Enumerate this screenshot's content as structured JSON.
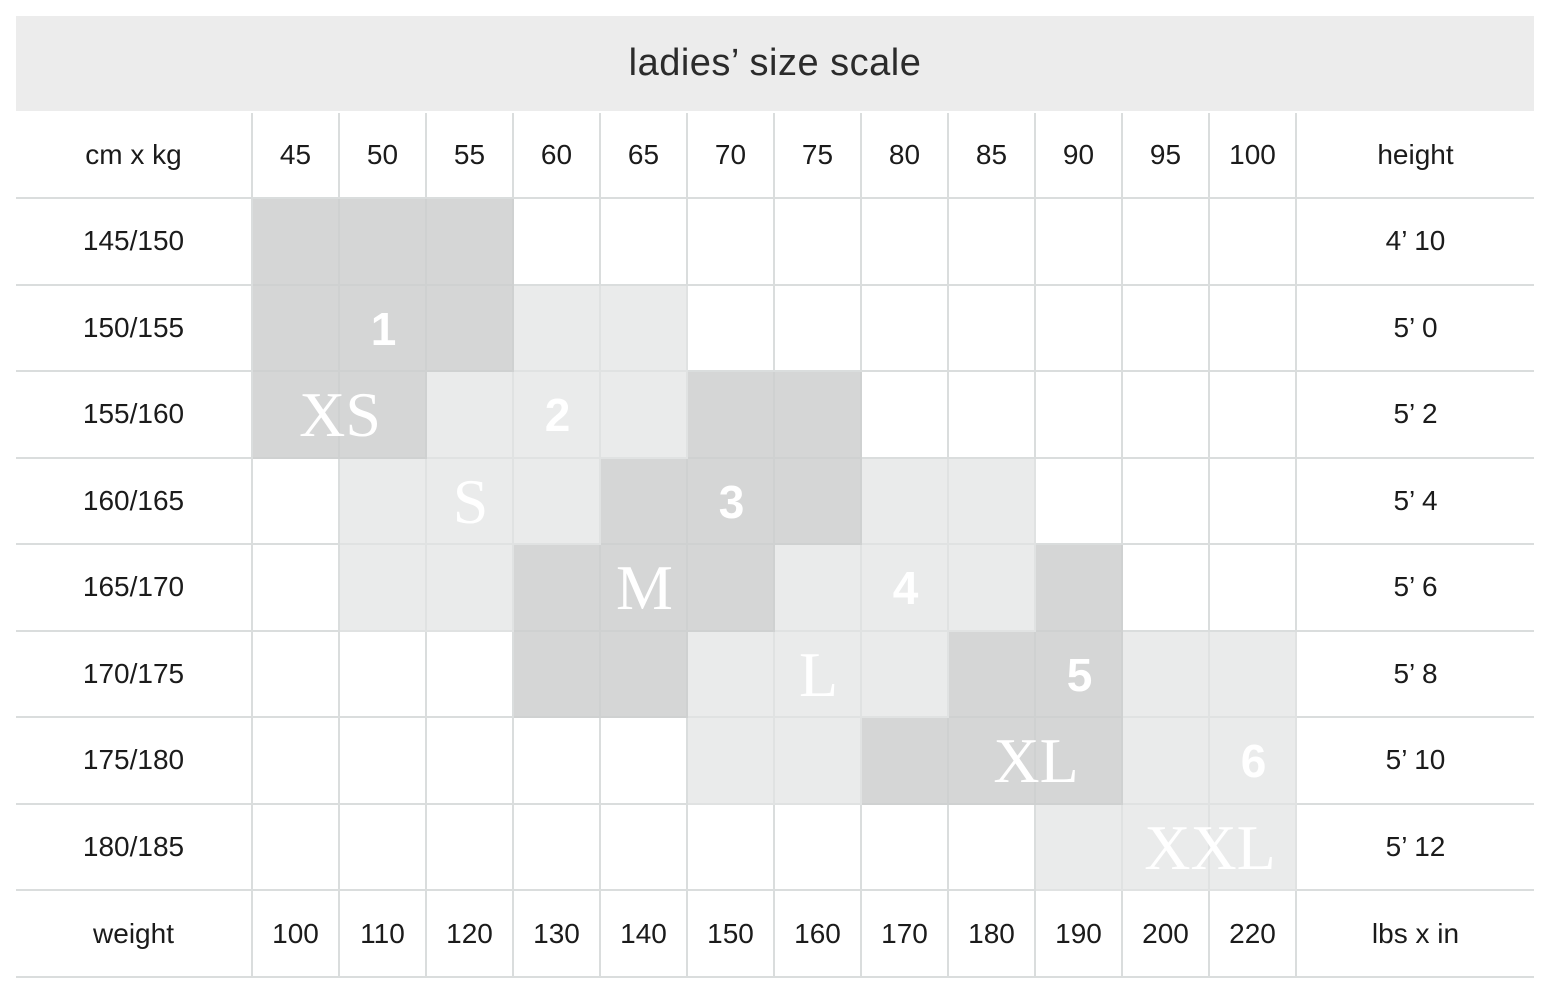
{
  "chart_data": {
    "type": "table",
    "title": "ladies’ size scale",
    "corners": {
      "top_left": "cm x kg",
      "top_right": "height",
      "bottom_left": "weight",
      "bottom_right": "lbs x in"
    },
    "weight_kg_columns": [
      "45",
      "50",
      "55",
      "60",
      "65",
      "70",
      "75",
      "80",
      "85",
      "90",
      "95",
      "100"
    ],
    "weight_lbs_row": [
      "100",
      "110",
      "120",
      "130",
      "140",
      "150",
      "160",
      "170",
      "180",
      "190",
      "200",
      "220"
    ],
    "height_rows": [
      {
        "cm": "145/150",
        "imperial": "4’ 10"
      },
      {
        "cm": "150/155",
        "imperial": "5’ 0"
      },
      {
        "cm": "155/160",
        "imperial": "5’ 2"
      },
      {
        "cm": "160/165",
        "imperial": "5’ 4"
      },
      {
        "cm": "165/170",
        "imperial": "5’ 6"
      },
      {
        "cm": "170/175",
        "imperial": "5’ 8"
      },
      {
        "cm": "175/180",
        "imperial": "5’ 10"
      },
      {
        "cm": "180/185",
        "imperial": "5’ 12"
      }
    ],
    "sizes": [
      {
        "name": "XS",
        "number": "1",
        "shade": "dark",
        "cells": [
          [
            0,
            0
          ],
          [
            0,
            1
          ],
          [
            0,
            2
          ],
          [
            1,
            0
          ],
          [
            1,
            1
          ],
          [
            1,
            2
          ],
          [
            2,
            0
          ],
          [
            2,
            1
          ]
        ],
        "name_pos": {
          "row": 2,
          "col": 0,
          "span": 2
        },
        "number_pos": {
          "row": 1,
          "col": 1
        }
      },
      {
        "name": "S",
        "number": "2",
        "shade": "light",
        "cells": [
          [
            1,
            3
          ],
          [
            1,
            4
          ],
          [
            2,
            2
          ],
          [
            2,
            3
          ],
          [
            2,
            4
          ],
          [
            3,
            1
          ],
          [
            3,
            2
          ],
          [
            3,
            3
          ],
          [
            4,
            1
          ],
          [
            4,
            2
          ]
        ],
        "name_pos": {
          "row": 3,
          "col": 2,
          "span": 1
        },
        "number_pos": {
          "row": 2,
          "col": 3
        }
      },
      {
        "name": "M",
        "number": "3",
        "shade": "dark",
        "cells": [
          [
            2,
            5
          ],
          [
            2,
            6
          ],
          [
            3,
            4
          ],
          [
            3,
            5
          ],
          [
            3,
            6
          ],
          [
            4,
            3
          ],
          [
            4,
            4
          ],
          [
            4,
            5
          ],
          [
            5,
            3
          ],
          [
            5,
            4
          ]
        ],
        "name_pos": {
          "row": 4,
          "col": 3,
          "span": 3
        },
        "number_pos": {
          "row": 3,
          "col": 5
        }
      },
      {
        "name": "L",
        "number": "4",
        "shade": "light",
        "cells": [
          [
            3,
            7
          ],
          [
            3,
            8
          ],
          [
            4,
            6
          ],
          [
            4,
            7
          ],
          [
            4,
            8
          ],
          [
            5,
            5
          ],
          [
            5,
            6
          ],
          [
            5,
            7
          ],
          [
            6,
            5
          ],
          [
            6,
            6
          ]
        ],
        "name_pos": {
          "row": 5,
          "col": 6,
          "span": 1
        },
        "number_pos": {
          "row": 4,
          "col": 7
        }
      },
      {
        "name": "XL",
        "number": "5",
        "shade": "dark",
        "cells": [
          [
            4,
            9
          ],
          [
            5,
            8
          ],
          [
            5,
            9
          ],
          [
            6,
            7
          ],
          [
            6,
            8
          ],
          [
            6,
            9
          ]
        ],
        "name_pos": {
          "row": 6,
          "col": 8,
          "span": 2
        },
        "number_pos": {
          "row": 5,
          "col": 9
        }
      },
      {
        "name": "XXL",
        "number": "6",
        "shade": "light",
        "cells": [
          [
            5,
            10
          ],
          [
            5,
            11
          ],
          [
            6,
            10
          ],
          [
            6,
            11
          ],
          [
            7,
            9
          ],
          [
            7,
            10
          ],
          [
            7,
            11
          ]
        ],
        "name_pos": {
          "row": 7,
          "col": 10,
          "span": 2
        },
        "number_pos": {
          "row": 6,
          "col": 11
        }
      }
    ],
    "colors": {
      "banner_bg": "#ececec",
      "dark_cell": "#d5d6d6",
      "light_cell": "#eaebeb",
      "grid_text": "#1b1b1b",
      "size_label_text": "#ffffff"
    }
  }
}
